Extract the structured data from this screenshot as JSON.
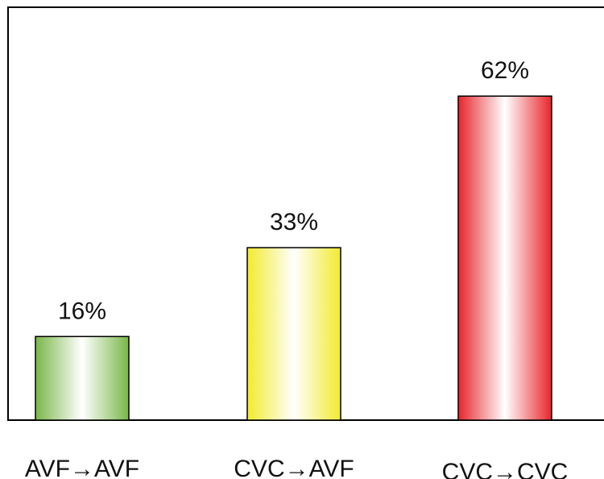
{
  "chart_data": {
    "type": "bar",
    "categories": [
      "AVF→AVF",
      "CVC→AVF",
      "CVC→CVC"
    ],
    "values": [
      16,
      33,
      62
    ],
    "value_labels": [
      "16%",
      "33%",
      "62%"
    ],
    "ylim": [
      0,
      79
    ],
    "grid": false,
    "colors": [
      "#7ab648",
      "#f2ea2e",
      "#e8252b"
    ]
  }
}
